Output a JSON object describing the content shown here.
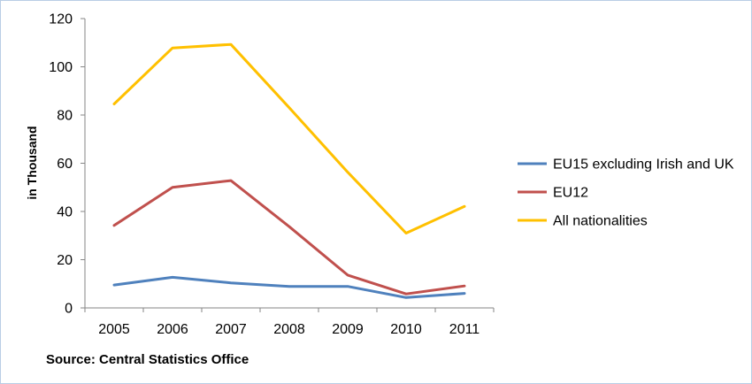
{
  "chart_data": {
    "type": "line",
    "title": "",
    "xlabel": "",
    "ylabel": "in Thousand",
    "ylim": [
      0,
      120
    ],
    "yticks": [
      0,
      20,
      40,
      60,
      80,
      100,
      120
    ],
    "categories": [
      "2005",
      "2006",
      "2007",
      "2008",
      "2009",
      "2010",
      "2011"
    ],
    "grid": false,
    "legend_position": "right",
    "series": [
      {
        "name": "EU15 excluding Irish and UK",
        "color": "#4f81bd",
        "values": [
          9.5,
          12.7,
          10.4,
          8.9,
          8.9,
          4.3,
          6.0
        ]
      },
      {
        "name": "EU12",
        "color": "#c0504d",
        "values": [
          34.2,
          50.0,
          52.8,
          33.7,
          13.6,
          5.8,
          9.1
        ]
      },
      {
        "name": "All nationalities",
        "color": "#ffc000",
        "values": [
          84.6,
          107.8,
          109.3,
          83.0,
          56.3,
          31.0,
          42.1
        ]
      }
    ]
  },
  "source": "Source: Central Statistics Office"
}
